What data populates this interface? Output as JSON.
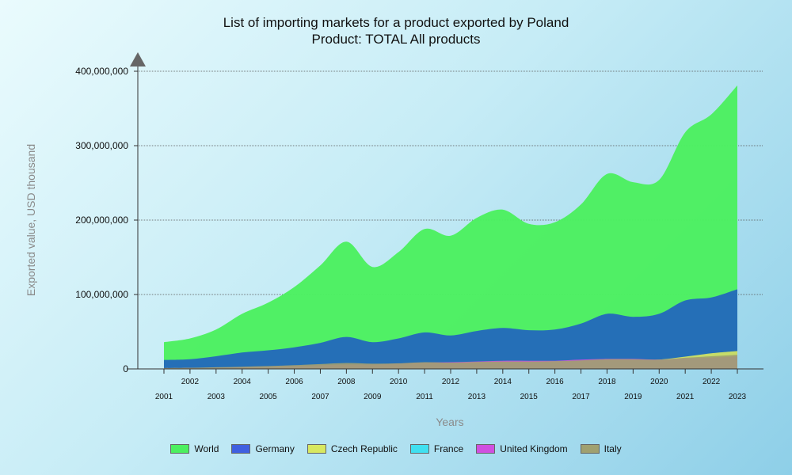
{
  "title_line1": "List of importing markets for a product exported by Poland",
  "title_line2": "Product: TOTAL All products",
  "chart_data": {
    "type": "area",
    "xlabel": "Years",
    "ylabel": "Exported value, USD thousand",
    "ylim": [
      0,
      400000000
    ],
    "yticks": [
      "0",
      "100,000,000",
      "200,000,000",
      "300,000,000",
      "400,000,000"
    ],
    "grid": true,
    "legend_position": "bottom",
    "x": [
      "2001",
      "2002",
      "2003",
      "2004",
      "2005",
      "2006",
      "2007",
      "2008",
      "2009",
      "2010",
      "2011",
      "2012",
      "2013",
      "2014",
      "2015",
      "2016",
      "2017",
      "2018",
      "2019",
      "2020",
      "2021",
      "2022",
      "2023"
    ],
    "series": [
      {
        "name": "World",
        "color": "#4cf060",
        "values": [
          36000000,
          41000000,
          53000000,
          74000000,
          89000000,
          110000000,
          139000000,
          171000000,
          137000000,
          157000000,
          188000000,
          179000000,
          203000000,
          214000000,
          195000000,
          197000000,
          221000000,
          262000000,
          251000000,
          254000000,
          318000000,
          342000000,
          381000000
        ]
      },
      {
        "name": "Germany",
        "color": "#2060c0",
        "values": [
          12000000,
          13000000,
          17000000,
          22000000,
          25000000,
          29000000,
          35000000,
          43000000,
          36000000,
          41000000,
          49000000,
          45000000,
          51000000,
          55000000,
          52000000,
          53000000,
          61000000,
          74000000,
          70000000,
          74000000,
          92000000,
          96000000,
          107000000
        ]
      },
      {
        "name": "Czech Republic",
        "color": "#d8e860",
        "values": [
          1000000,
          1200000,
          1500000,
          2000000,
          2500000,
          3500000,
          4500000,
          5500000,
          5500000,
          6500000,
          8000000,
          8000000,
          8500000,
          9000000,
          9000000,
          9500000,
          10500000,
          12000000,
          12000000,
          12500000,
          16500000,
          21000000,
          24000000
        ]
      },
      {
        "name": "France",
        "color": "#40e0f0",
        "values": [
          1000000,
          1100000,
          1500000,
          2000000,
          2500000,
          3300000,
          4000000,
          5000000,
          5000000,
          5500000,
          6500000,
          6500000,
          7000000,
          7500000,
          7500000,
          8000000,
          9000000,
          10000000,
          10000000,
          10000000,
          12000000,
          13500000,
          15500000
        ]
      },
      {
        "name": "United Kingdom",
        "color": "#d050e0",
        "values": [
          1000000,
          1200000,
          1600000,
          2300000,
          3000000,
          4000000,
          5000000,
          6000000,
          6000000,
          7000000,
          8500000,
          9000000,
          10000000,
          11000000,
          11000000,
          11000000,
          12500000,
          13500000,
          13500000,
          12500000,
          14000000,
          15000000,
          17000000
        ]
      },
      {
        "name": "Italy",
        "color": "#a0a070",
        "values": [
          1200000,
          1500000,
          2200000,
          3000000,
          3800000,
          5000000,
          6500000,
          8000000,
          7000000,
          7500000,
          9000000,
          8500000,
          9500000,
          10000000,
          10000000,
          10500000,
          11500000,
          13000000,
          13000000,
          12500000,
          15000000,
          17000000,
          19000000
        ]
      }
    ]
  }
}
